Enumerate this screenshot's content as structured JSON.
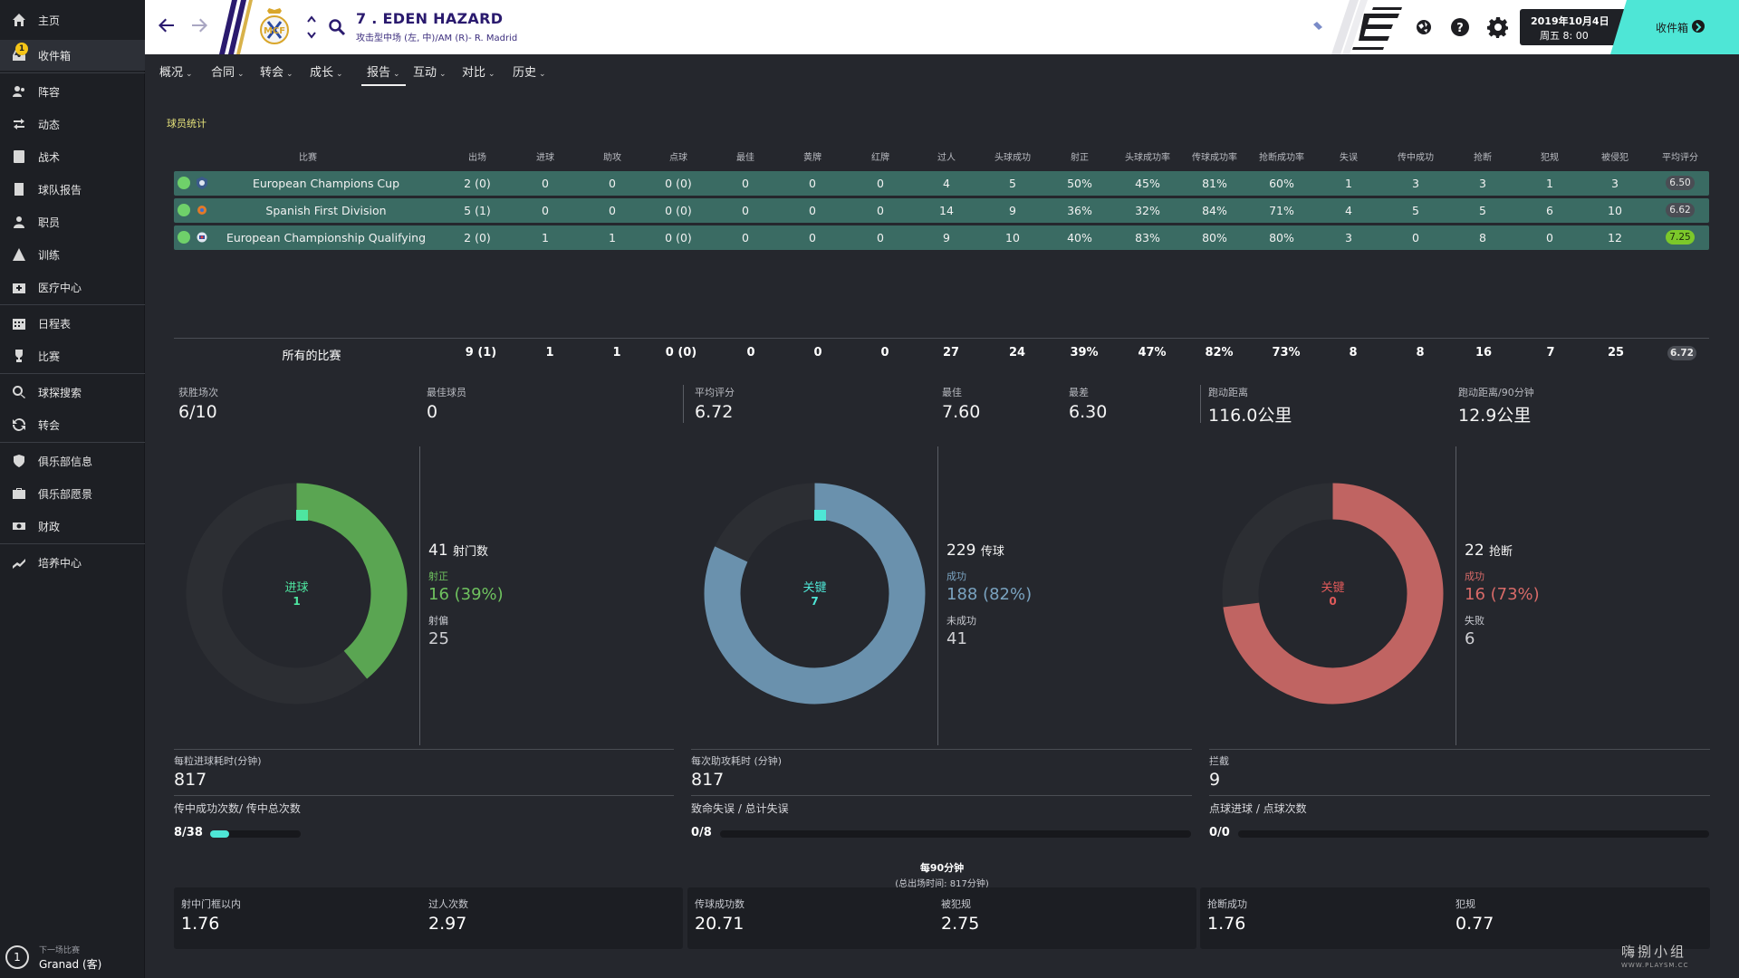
{
  "sidebar": {
    "items": [
      {
        "label": "主页",
        "icon": "home-icon"
      },
      {
        "label": "收件箱",
        "icon": "inbox-icon",
        "badge": "1"
      },
      {
        "label": "阵容",
        "icon": "squad-icon"
      },
      {
        "label": "动态",
        "icon": "dynamics-icon"
      },
      {
        "label": "战术",
        "icon": "tactics-icon"
      },
      {
        "label": "球队报告",
        "icon": "report-icon"
      },
      {
        "label": "职员",
        "icon": "staff-icon"
      },
      {
        "label": "训练",
        "icon": "training-icon"
      },
      {
        "label": "医疗中心",
        "icon": "medical-icon"
      },
      {
        "label": "日程表",
        "icon": "calendar-icon"
      },
      {
        "label": "比赛",
        "icon": "trophy-icon"
      },
      {
        "label": "球探搜索",
        "icon": "search-icon"
      },
      {
        "label": "转会",
        "icon": "transfer-icon"
      },
      {
        "label": "俱乐部信息",
        "icon": "shield-icon"
      },
      {
        "label": "俱乐部愿景",
        "icon": "briefcase-icon"
      },
      {
        "label": "财政",
        "icon": "money-icon"
      },
      {
        "label": "培养中心",
        "icon": "development-icon"
      }
    ],
    "next_match": {
      "number": "1",
      "label": "下一场比赛",
      "value": "Granad (客)"
    }
  },
  "header": {
    "player_name": "7 . EDEN HAZARD",
    "position": "攻击型中场 (左, 中)/AM (R)- R. Madrid",
    "date_line1": "2019年10月4日",
    "date_line2": "周五 8: 00",
    "inbox_label": "收件箱"
  },
  "tabs": [
    {
      "label": "概况"
    },
    {
      "label": "合同"
    },
    {
      "label": "转会"
    },
    {
      "label": "成长"
    },
    {
      "label": "报告",
      "active": true
    },
    {
      "label": "互动"
    },
    {
      "label": "对比"
    },
    {
      "label": "历史"
    }
  ],
  "section_title": "球员统计",
  "table": {
    "headers": [
      "比赛",
      "出场",
      "进球",
      "助攻",
      "点球",
      "最佳",
      "黄牌",
      "红牌",
      "过人",
      "头球成功",
      "射正",
      "头球成功率",
      "传球成功率",
      "抢断成功率",
      "失误",
      "传中成功",
      "抢断",
      "犯规",
      "被侵犯",
      "平均评分"
    ],
    "rows": [
      {
        "cells": [
          "European Champions Cup",
          "2 (0)",
          "0",
          "0",
          "0 (0)",
          "0",
          "0",
          "0",
          "4",
          "5",
          "50%",
          "45%",
          "81%",
          "60%",
          "1",
          "3",
          "3",
          "1",
          "3"
        ],
        "rating": "6.50",
        "best": false
      },
      {
        "cells": [
          "Spanish First Division",
          "5 (1)",
          "0",
          "0",
          "0 (0)",
          "0",
          "0",
          "0",
          "14",
          "9",
          "36%",
          "32%",
          "84%",
          "71%",
          "4",
          "5",
          "5",
          "6",
          "10"
        ],
        "rating": "6.62",
        "best": false
      },
      {
        "cells": [
          "European Championship Qualifying",
          "2 (0)",
          "1",
          "1",
          "0 (0)",
          "0",
          "0",
          "0",
          "9",
          "10",
          "40%",
          "83%",
          "80%",
          "80%",
          "3",
          "0",
          "8",
          "0",
          "12"
        ],
        "rating": "7.25",
        "best": true
      }
    ],
    "total": {
      "cells": [
        "所有的比赛",
        "9 (1)",
        "1",
        "1",
        "0 (0)",
        "0",
        "0",
        "0",
        "27",
        "24",
        "39%",
        "47%",
        "82%",
        "73%",
        "8",
        "8",
        "16",
        "7",
        "25"
      ],
      "rating": "6.72"
    }
  },
  "summary": [
    {
      "label": "获胜场次",
      "value": "6/10"
    },
    {
      "label": "最佳球员",
      "value": "0"
    },
    {
      "label": "平均评分",
      "value": "6.72"
    },
    {
      "label": "最佳",
      "value": "7.60"
    },
    {
      "label": "最差",
      "value": "6.30"
    },
    {
      "label": "跑动距离",
      "value": "116.0公里"
    },
    {
      "label": "跑动距离/90分钟",
      "value": "12.9公里"
    }
  ],
  "donuts": [
    {
      "center_label": "进球",
      "center_value": "1",
      "color": "#5aa552",
      "center_color": "#4ee6a0",
      "fraction": 0.39,
      "total_value": "41",
      "total_label": "射门数",
      "a_label": "射正",
      "a_value": "16 (39%)",
      "b_label": "射偏",
      "b_value": "25"
    },
    {
      "center_label": "关键",
      "center_value": "7",
      "color": "#6a91ad",
      "center_color": "#4ee6d6",
      "fraction": 0.82,
      "total_value": "229",
      "total_label": "传球",
      "a_label": "成功",
      "a_value": "188 (82%)",
      "b_label": "未成功",
      "b_value": "41"
    },
    {
      "center_label": "关键",
      "center_value": "0",
      "color": "#c06462",
      "center_color": "#e05a5a",
      "fraction": 0.73,
      "total_value": "22",
      "total_label": "抢断",
      "a_label": "成功",
      "a_value": "16 (73%)",
      "b_label": "失败",
      "b_value": "6"
    }
  ],
  "metrics": [
    {
      "label": "每粒进球耗时(分钟)",
      "value": "817"
    },
    {
      "label": "每次助攻耗时 (分钟)",
      "value": "817"
    },
    {
      "label": "拦截",
      "value": "9"
    }
  ],
  "bar_stats": [
    {
      "label": "传中成功次数/ 传中总次数",
      "value": "8/38",
      "fraction": 0.21
    },
    {
      "label": "致命失误 / 总计失误",
      "value": "0/8",
      "fraction": 0
    },
    {
      "label": "点球进球 / 点球次数",
      "value": "0/0",
      "fraction": 0
    }
  ],
  "per90": {
    "title": "每90分钟",
    "subtitle": "(总出场时间: 817分钟)",
    "items": [
      {
        "label": "射中门框以内",
        "value": "1.76"
      },
      {
        "label": "过人次数",
        "value": "2.97"
      },
      {
        "label": "传球成功数",
        "value": "20.71"
      },
      {
        "label": "被犯规",
        "value": "2.75"
      },
      {
        "label": "抢断成功",
        "value": "1.76"
      },
      {
        "label": "犯规",
        "value": "0.77"
      }
    ]
  },
  "watermark": {
    "text": "嗨捌小组",
    "sub": "WWW.PLAYSM.CC"
  }
}
